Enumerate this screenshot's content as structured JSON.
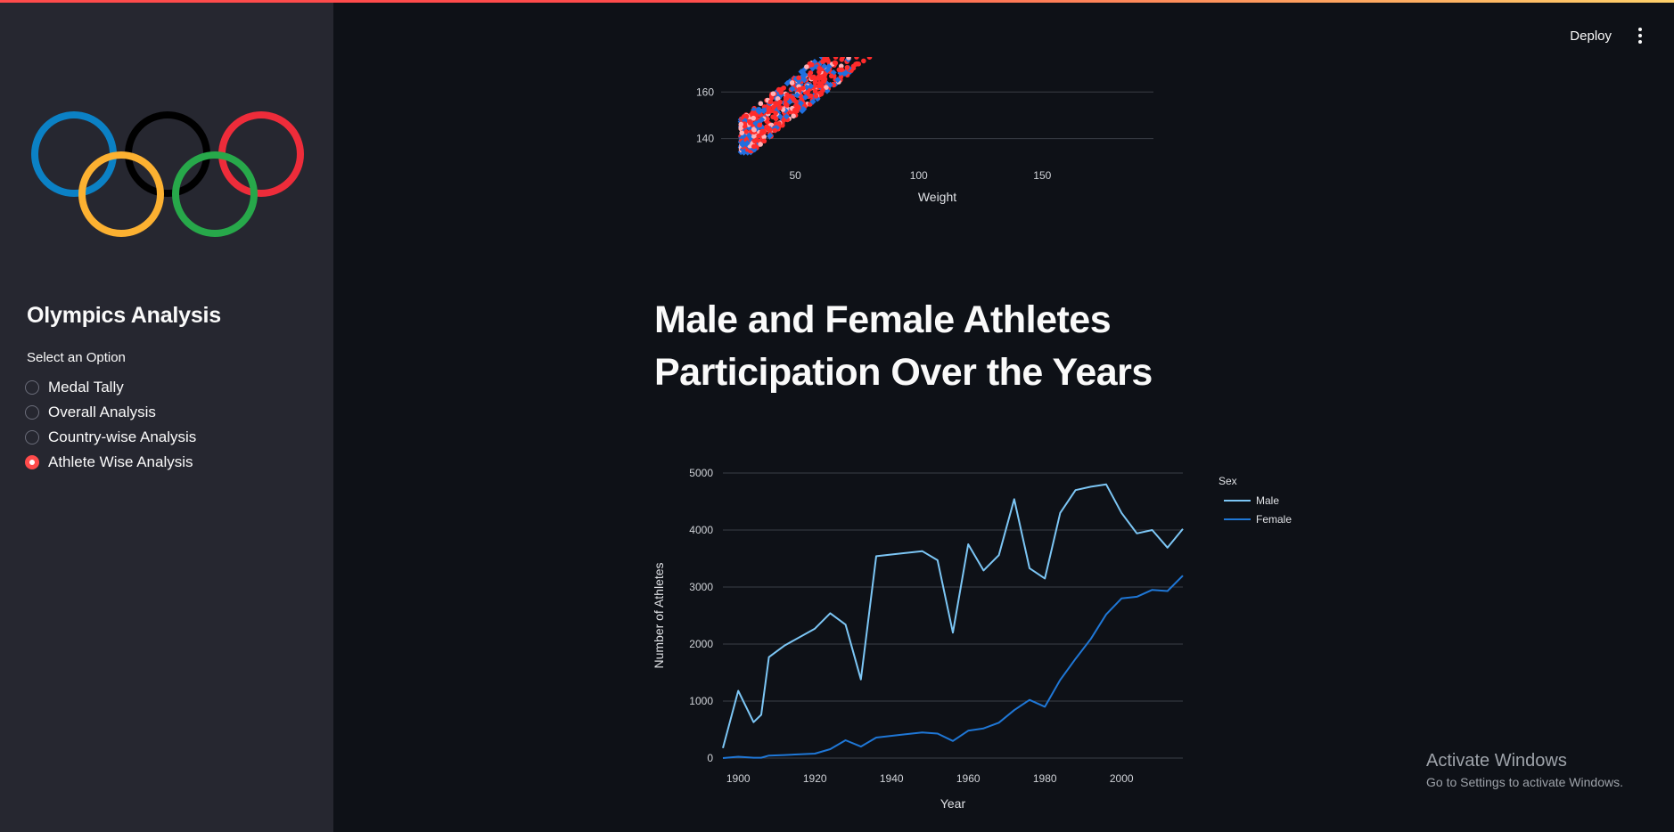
{
  "app": {
    "title": "Olympics Analysis",
    "accent_color": "#ff4b4b",
    "logo_icon": "olympic-rings-icon"
  },
  "header": {
    "deploy_label": "Deploy",
    "menu_icon": "kebab-menu-icon"
  },
  "sidebar": {
    "radio_label": "Select an Option",
    "options": [
      {
        "label": "Medal Tally",
        "selected": false
      },
      {
        "label": "Overall Analysis",
        "selected": false
      },
      {
        "label": "Country-wise Analysis",
        "selected": false
      },
      {
        "label": "Athlete Wise Analysis",
        "selected": true
      }
    ]
  },
  "main": {
    "section_title": "Male and Female Athletes Participation Over the Years"
  },
  "watermark": {
    "line1": "Activate Windows",
    "line2": "Go to Settings to activate Windows."
  },
  "chart_data": [
    {
      "type": "scatter",
      "xlabel": "Weight",
      "x_ticks": [
        50,
        100,
        150
      ],
      "y_ticks": [
        140,
        160
      ],
      "xlim": [
        20,
        195
      ],
      "ylim": [
        133,
        175
      ],
      "colors": [
        "#ff2b2b",
        "#1f6fe0",
        "#ffb3b8"
      ],
      "note_visible": "cropped at top; only lower part of plot visible"
    },
    {
      "type": "line",
      "title": "",
      "xlabel": "Year",
      "ylabel": "Number of Athletes",
      "legend_title": "Sex",
      "legend_position": "top-right",
      "xlim": [
        1896,
        2016
      ],
      "ylim": [
        0,
        5000
      ],
      "x_ticks": [
        1900,
        1920,
        1940,
        1960,
        1980,
        2000
      ],
      "y_ticks": [
        0,
        1000,
        2000,
        3000,
        4000,
        5000
      ],
      "series": [
        {
          "name": "Male",
          "color": "#7cc6f5",
          "points": [
            [
              1896,
              176
            ],
            [
              1900,
              1180
            ],
            [
              1904,
              630
            ],
            [
              1906,
              760
            ],
            [
              1908,
              1770
            ],
            [
              1912,
              1970
            ],
            [
              1920,
              2270
            ],
            [
              1924,
              2540
            ],
            [
              1928,
              2340
            ],
            [
              1932,
              1380
            ],
            [
              1936,
              3540
            ],
            [
              1948,
              3630
            ],
            [
              1952,
              3470
            ],
            [
              1956,
              2200
            ],
            [
              1960,
              3750
            ],
            [
              1964,
              3290
            ],
            [
              1968,
              3560
            ],
            [
              1972,
              4540
            ],
            [
              1976,
              3330
            ],
            [
              1980,
              3150
            ],
            [
              1984,
              4300
            ],
            [
              1988,
              4700
            ],
            [
              1992,
              4760
            ],
            [
              1996,
              4800
            ],
            [
              2000,
              4300
            ],
            [
              2004,
              3940
            ],
            [
              2008,
              4000
            ],
            [
              2012,
              3690
            ],
            [
              2016,
              4020
            ]
          ]
        },
        {
          "name": "Female",
          "color": "#1f77d6",
          "points": [
            [
              1896,
              0
            ],
            [
              1900,
              23
            ],
            [
              1904,
              6
            ],
            [
              1906,
              6
            ],
            [
              1908,
              44
            ],
            [
              1912,
              53
            ],
            [
              1920,
              78
            ],
            [
              1924,
              156
            ],
            [
              1928,
              312
            ],
            [
              1932,
              201
            ],
            [
              1936,
              360
            ],
            [
              1948,
              450
            ],
            [
              1952,
              430
            ],
            [
              1956,
              300
            ],
            [
              1960,
              480
            ],
            [
              1964,
              520
            ],
            [
              1968,
              620
            ],
            [
              1972,
              840
            ],
            [
              1976,
              1020
            ],
            [
              1980,
              900
            ],
            [
              1984,
              1370
            ],
            [
              1988,
              1740
            ],
            [
              1992,
              2090
            ],
            [
              1996,
              2520
            ],
            [
              2000,
              2800
            ],
            [
              2004,
              2830
            ],
            [
              2008,
              2950
            ],
            [
              2012,
              2930
            ],
            [
              2016,
              3200
            ]
          ]
        }
      ]
    }
  ]
}
